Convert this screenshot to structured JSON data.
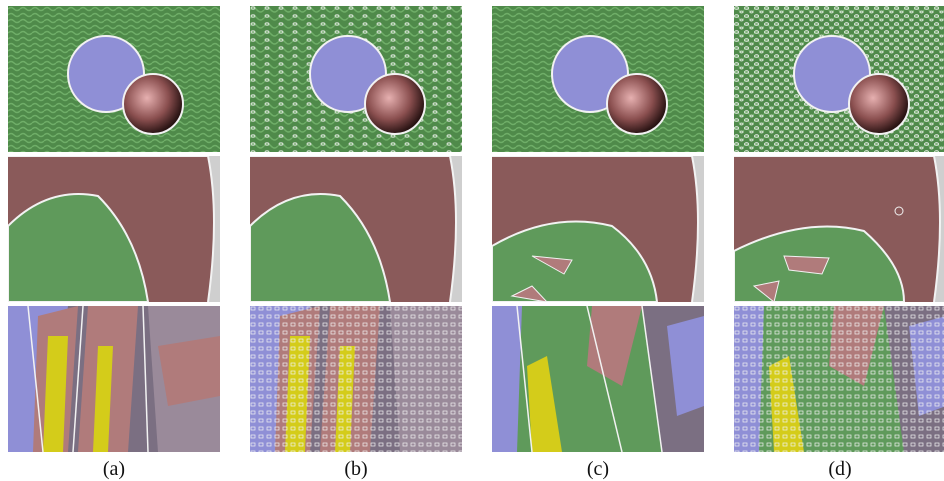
{
  "figure": {
    "columns": [
      {
        "label": "(a)"
      },
      {
        "label": "(b)"
      },
      {
        "label": "(c)"
      },
      {
        "label": "(d)"
      }
    ],
    "rows": [
      "circles-on-grass",
      "closeup-scene",
      "building-blocks-scene"
    ],
    "colors": {
      "green_region": "#5f9a5b",
      "blue_region": "#8f8fd6",
      "pink_region": "#b07b7b",
      "yellow_region": "#d4cc1a",
      "boundary": "#f2f2f2"
    }
  }
}
